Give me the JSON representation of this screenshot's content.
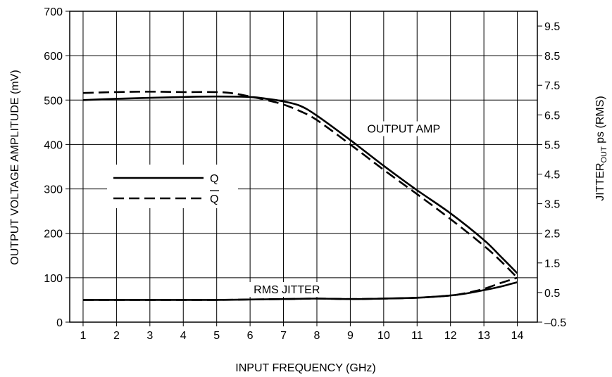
{
  "chart_data": {
    "type": "line",
    "xlabel": "INPUT FREQUENCY (GHz)",
    "ylabel": "OUTPUT VOLTAGE AMPLITUDE (mV)",
    "y2label_main": "JITTER",
    "y2label_sub": "OUT",
    "y2label_tail": " ps (RMS)",
    "xlim": [
      0.6,
      14.6
    ],
    "ylim": [
      0,
      700
    ],
    "y2lim": [
      -0.5,
      10.0
    ],
    "x_ticks": [
      1,
      2,
      3,
      4,
      5,
      6,
      7,
      8,
      9,
      10,
      11,
      12,
      13,
      14
    ],
    "y_ticks": [
      0,
      100,
      200,
      300,
      400,
      500,
      600,
      700
    ],
    "y2_ticks": [
      -0.5,
      0.5,
      1.5,
      2.5,
      3.5,
      4.5,
      5.5,
      6.5,
      7.5,
      8.5,
      9.5
    ],
    "y2_tick_labels": [
      "–0.5",
      "0.5",
      "1.5",
      "2.5",
      "3.5",
      "4.5",
      "5.5",
      "6.5",
      "7.5",
      "8.5",
      "9.5"
    ],
    "grid": true,
    "legend": {
      "placement": "left-middle",
      "entries": [
        {
          "label": "Q",
          "overline": false,
          "style": "solid"
        },
        {
          "label": "Q",
          "overline": true,
          "style": "dashed"
        }
      ]
    },
    "annotations": [
      {
        "text": "OUTPUT AMP",
        "x": 10.6,
        "y": 430
      },
      {
        "text": "RMS JITTER",
        "x": 7.1,
        "y": 68
      }
    ],
    "series": [
      {
        "group": "output-amp",
        "style": "solid",
        "x": [
          1,
          2,
          3,
          4,
          5,
          6,
          6.5,
          7,
          7.5,
          8,
          9,
          10,
          11,
          12,
          13,
          13.5,
          14
        ],
        "y": [
          500,
          503,
          505,
          507,
          508,
          507,
          503,
          497,
          487,
          465,
          410,
          352,
          297,
          245,
          185,
          148,
          110
        ]
      },
      {
        "group": "output-amp",
        "style": "dashed",
        "x": [
          1,
          2,
          3,
          4,
          5,
          5.5,
          6,
          6.5,
          7,
          7.5,
          8,
          9,
          10,
          11,
          12,
          13,
          13.5,
          14
        ],
        "y": [
          516,
          518,
          519,
          518,
          518,
          515,
          508,
          500,
          490,
          475,
          455,
          400,
          343,
          288,
          232,
          172,
          138,
          100
        ]
      },
      {
        "group": "rms-jitter",
        "style": "solid",
        "x": [
          1,
          2,
          3,
          4,
          5,
          6,
          7,
          8,
          9,
          10,
          11,
          12,
          12.5,
          13,
          13.5,
          14
        ],
        "y": [
          50,
          50,
          50,
          50,
          50,
          51,
          52,
          53,
          52,
          53,
          55,
          60,
          65,
          72,
          80,
          90
        ]
      },
      {
        "group": "rms-jitter",
        "style": "dashed",
        "x": [
          1,
          2,
          3,
          4,
          5,
          6,
          7,
          8,
          9,
          10,
          11,
          12,
          12.5,
          13,
          13.5,
          14
        ],
        "y": [
          50,
          50,
          50,
          50,
          50,
          51,
          52,
          53,
          52,
          53,
          55,
          60,
          66,
          75,
          88,
          100
        ]
      }
    ]
  }
}
